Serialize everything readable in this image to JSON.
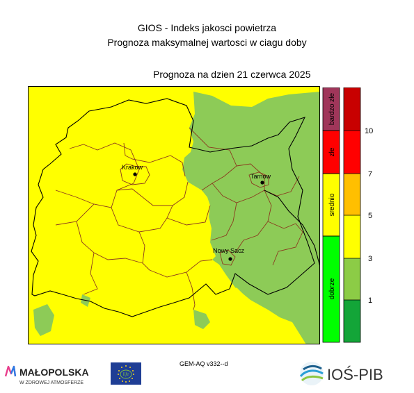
{
  "title": {
    "line1": "GIOS - Indeks jakosci powietrza",
    "line2": "Prognoza maksymalnej wartosci w ciagu doby"
  },
  "forecast_date": "Prognoza na dzien  21 czerwca 2025",
  "cities": [
    {
      "name": "Krakow"
    },
    {
      "name": "Tarnow"
    },
    {
      "name": "Nowy Sacz"
    }
  ],
  "legend": {
    "categories": [
      {
        "label": "bardzo złe",
        "color": "#a0365a"
      },
      {
        "label": "złe",
        "color": "#ff0000"
      },
      {
        "label": "srednio",
        "color": "#ffff00"
      },
      {
        "label": "dobrze",
        "color": "#00ff00"
      }
    ],
    "scale_colors": [
      "#c80000",
      "#ff0000",
      "#ffbf00",
      "#ffff00",
      "#8ccc46",
      "#13a538"
    ],
    "scale_ticks": [
      "10",
      "7",
      "5",
      "3",
      "1"
    ]
  },
  "colors": {
    "yellow_zone": "#ffff00",
    "green_zone": "#8dcb57"
  },
  "model_label": "GEM-AQ v332--d",
  "logos": {
    "malopolska": "MAŁOPOLSKA",
    "malopolska_sub": "W ZDROWEJ ATMOSFERZE",
    "eu_life": "life",
    "ios": "IOŚ-PIB"
  }
}
